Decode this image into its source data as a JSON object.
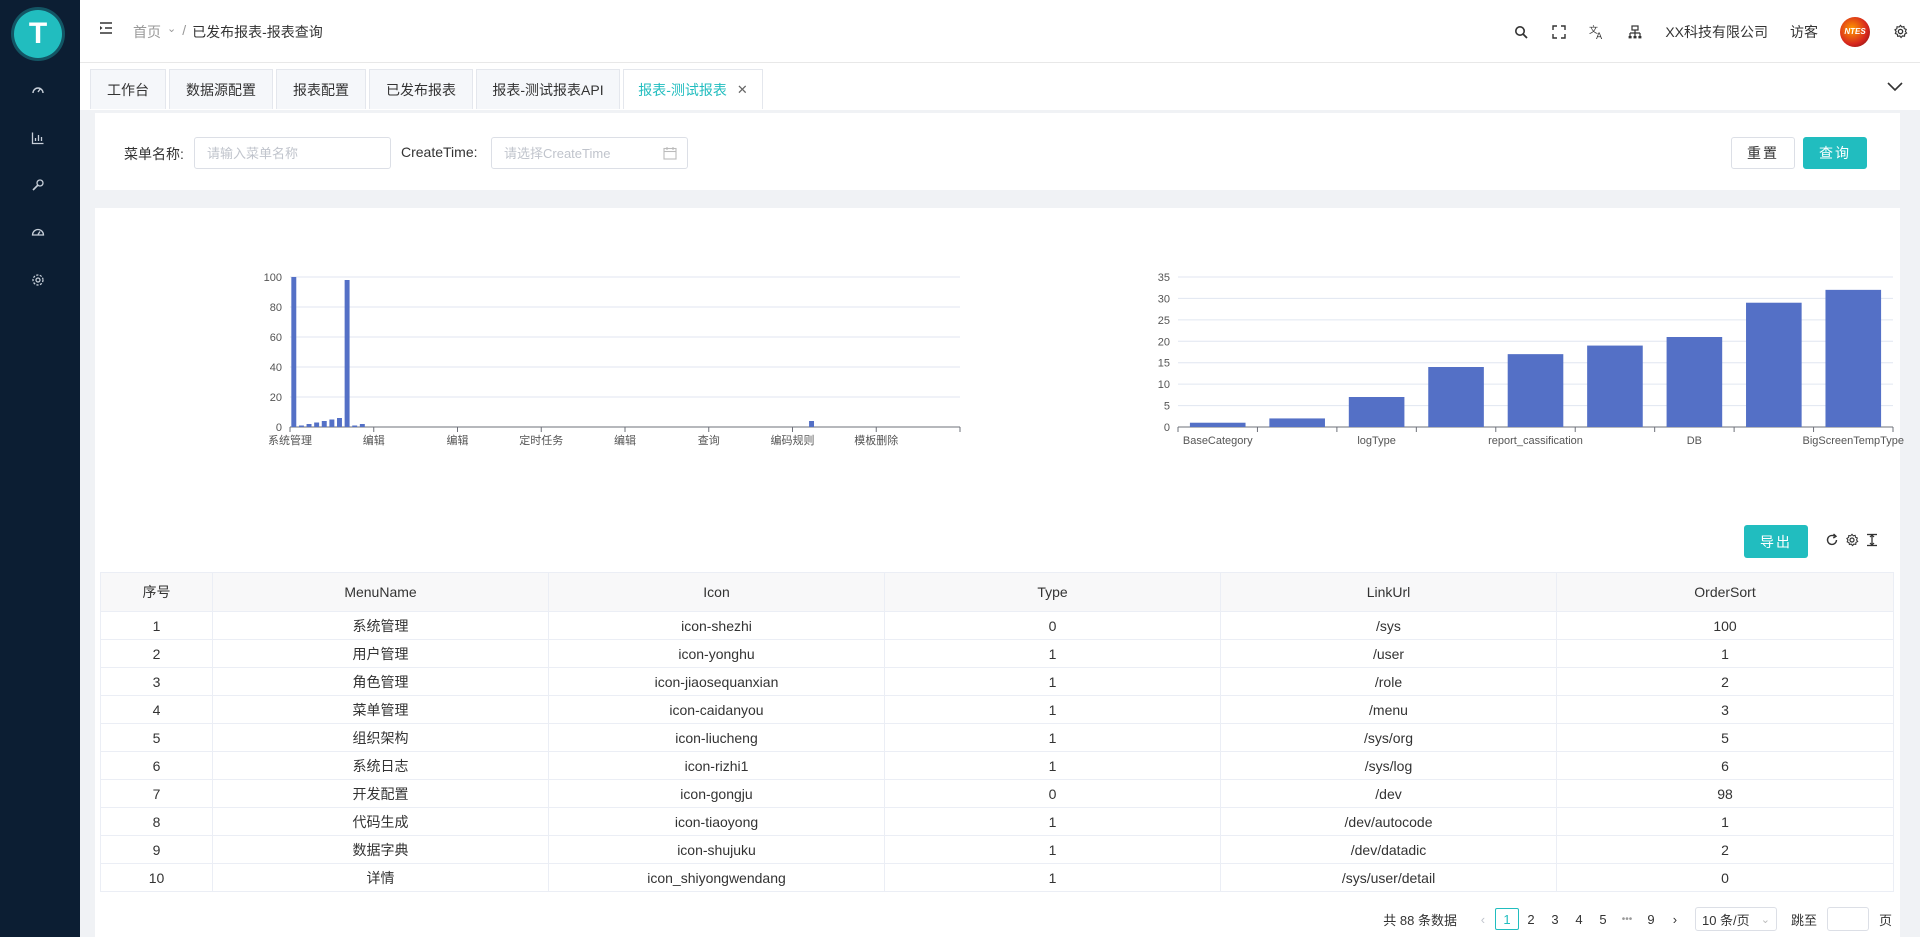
{
  "sidebar": {
    "logo_text": "T",
    "icons": [
      "dashboard-icon",
      "chart-icon",
      "wrench-icon",
      "gauge-icon",
      "settings-icon"
    ]
  },
  "header": {
    "breadcrumb": {
      "home": "首页",
      "separator": "/",
      "current": "已发布报表-报表查询"
    },
    "company": "XX科技有限公司",
    "user": "访客",
    "avatar_text": "NTES"
  },
  "tabs": [
    {
      "label": "工作台"
    },
    {
      "label": "数据源配置"
    },
    {
      "label": "报表配置"
    },
    {
      "label": "已发布报表"
    },
    {
      "label": "报表-测试报表API"
    },
    {
      "label": "报表-测试报表",
      "active": true
    }
  ],
  "search": {
    "menu_name_label": "菜单名称:",
    "menu_name_placeholder": "请输入菜单名称",
    "create_time_label": "CreateTime:",
    "create_time_placeholder": "请选择CreateTime",
    "reset_label": "重置",
    "query_label": "查询"
  },
  "chart_data": [
    {
      "type": "bar",
      "title": "",
      "xlabel": "",
      "ylabel": "",
      "ylim": [
        0,
        100
      ],
      "y_ticks": [
        0,
        20,
        40,
        60,
        80,
        100
      ],
      "x_tick_labels": [
        "系统管理",
        "编辑",
        "编辑",
        "定时任务",
        "编辑",
        "查询",
        "编码规则",
        "模板删除"
      ],
      "values": [
        100,
        1,
        2,
        3,
        4,
        5,
        6,
        98,
        1,
        2,
        0,
        0,
        0,
        0,
        0,
        0,
        0,
        0,
        0,
        0,
        0,
        0,
        0,
        0,
        0,
        0,
        0,
        0,
        0,
        0,
        0,
        0,
        0,
        0,
        0,
        0,
        0,
        0,
        0,
        0,
        0,
        0,
        0,
        0,
        0,
        0,
        0,
        0,
        0,
        0,
        0,
        0,
        0,
        0,
        0,
        0,
        0,
        0,
        0,
        0,
        0,
        0,
        0,
        0,
        0,
        0,
        0,
        0,
        4,
        0,
        0,
        0,
        0,
        0,
        0,
        0,
        0,
        0,
        0,
        0,
        0,
        0,
        0,
        0,
        0,
        0,
        0,
        0
      ]
    },
    {
      "type": "bar",
      "title": "",
      "xlabel": "",
      "ylabel": "",
      "ylim": [
        0,
        35
      ],
      "y_ticks": [
        0,
        5,
        10,
        15,
        20,
        25,
        30,
        35
      ],
      "categories": [
        "BaseCategory",
        "",
        "logType",
        "",
        "report_cassification",
        "",
        "DB",
        "",
        "BigScreenTempType"
      ],
      "values": [
        1,
        2,
        7,
        14,
        17,
        19,
        21,
        29,
        32
      ]
    }
  ],
  "toolbar": {
    "export_label": "导出"
  },
  "table": {
    "columns": [
      "序号",
      "MenuName",
      "Icon",
      "Type",
      "LinkUrl",
      "OrderSort"
    ],
    "rows": [
      [
        "1",
        "系统管理",
        "icon-shezhi",
        "0",
        "/sys",
        "100"
      ],
      [
        "2",
        "用户管理",
        "icon-yonghu",
        "1",
        "/user",
        "1"
      ],
      [
        "3",
        "角色管理",
        "icon-jiaosequanxian",
        "1",
        "/role",
        "2"
      ],
      [
        "4",
        "菜单管理",
        "icon-caidanyou",
        "1",
        "/menu",
        "3"
      ],
      [
        "5",
        "组织架构",
        "icon-liucheng",
        "1",
        "/sys/org",
        "5"
      ],
      [
        "6",
        "系统日志",
        "icon-rizhi1",
        "1",
        "/sys/log",
        "6"
      ],
      [
        "7",
        "开发配置",
        "icon-gongju",
        "0",
        "/dev",
        "98"
      ],
      [
        "8",
        "代码生成",
        "icon-tiaoyong",
        "1",
        "/dev/autocode",
        "1"
      ],
      [
        "9",
        "数据字典",
        "icon-shujuku",
        "1",
        "/dev/datadic",
        "2"
      ],
      [
        "10",
        "详情",
        "icon_shiyongwendang",
        "1",
        "/sys/user/detail",
        "0"
      ]
    ]
  },
  "pagination": {
    "total_text": "共 88 条数据",
    "pages": [
      "1",
      "2",
      "3",
      "4",
      "5",
      "•••",
      "9"
    ],
    "current": "1",
    "page_size": "10 条/页",
    "jump_label": "跳至",
    "page_suffix": "页"
  },
  "colors": {
    "accent": "#21bdbf",
    "bar": "#5470c6",
    "sidebar": "#0c1e33"
  }
}
